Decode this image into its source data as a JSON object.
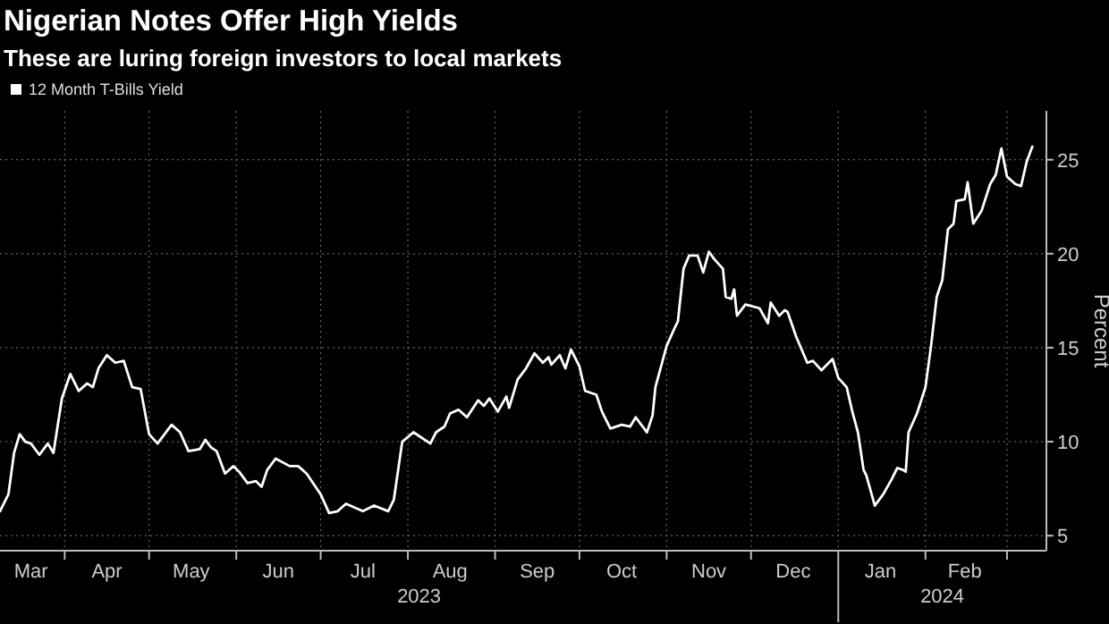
{
  "chart_data": {
    "type": "line",
    "title": "Nigerian Notes Offer High Yields",
    "subtitle": "These are luring foreign investors to local markets",
    "ylabel": "Percent",
    "x": [
      "2023-03-09",
      "2023-03-12",
      "2023-03-14",
      "2023-03-16",
      "2023-03-18",
      "2023-03-20",
      "2023-03-23",
      "2023-03-26",
      "2023-03-28",
      "2023-03-31",
      "2023-04-03",
      "2023-04-06",
      "2023-04-09",
      "2023-04-11",
      "2023-04-13",
      "2023-04-16",
      "2023-04-19",
      "2023-04-22",
      "2023-04-25",
      "2023-04-28",
      "2023-05-01",
      "2023-05-04",
      "2023-05-09",
      "2023-05-12",
      "2023-05-15",
      "2023-05-19",
      "2023-05-21",
      "2023-05-23",
      "2023-05-25",
      "2023-05-28",
      "2023-05-31",
      "2023-06-02",
      "2023-06-05",
      "2023-06-08",
      "2023-06-10",
      "2023-06-12",
      "2023-06-15",
      "2023-06-20",
      "2023-06-23",
      "2023-06-26",
      "2023-07-01",
      "2023-07-04",
      "2023-07-07",
      "2023-07-10",
      "2023-07-16",
      "2023-07-20",
      "2023-07-25",
      "2023-07-27",
      "2023-07-30",
      "2023-08-03",
      "2023-08-05",
      "2023-08-09",
      "2023-08-11",
      "2023-08-14",
      "2023-08-16",
      "2023-08-19",
      "2023-08-22",
      "2023-08-26",
      "2023-08-28",
      "2023-08-30",
      "2023-09-02",
      "2023-09-05",
      "2023-09-06",
      "2023-09-09",
      "2023-09-12",
      "2023-09-15",
      "2023-09-18",
      "2023-09-20",
      "2023-09-21",
      "2023-09-24",
      "2023-09-26",
      "2023-09-28",
      "2023-10-01",
      "2023-10-03",
      "2023-10-07",
      "2023-10-09",
      "2023-10-12",
      "2023-10-16",
      "2023-10-19",
      "2023-10-21",
      "2023-10-25",
      "2023-10-27",
      "2023-10-28",
      "2023-11-01",
      "2023-11-04",
      "2023-11-05",
      "2023-11-07",
      "2023-11-09",
      "2023-11-12",
      "2023-11-14",
      "2023-11-16",
      "2023-11-18",
      "2023-11-21",
      "2023-11-22",
      "2023-11-24",
      "2023-11-25",
      "2023-11-26",
      "2023-11-29",
      "2023-12-04",
      "2023-12-07",
      "2023-12-08",
      "2023-12-11",
      "2023-12-13",
      "2023-12-14",
      "2023-12-17",
      "2023-12-21",
      "2023-12-23",
      "2023-12-26",
      "2023-12-30",
      "2024-01-01",
      "2024-01-04",
      "2024-01-06",
      "2024-01-08",
      "2024-01-10",
      "2024-01-11",
      "2024-01-14",
      "2024-01-17",
      "2024-01-20",
      "2024-01-22",
      "2024-01-24",
      "2024-01-25",
      "2024-01-26",
      "2024-01-29",
      "2024-02-01",
      "2024-02-03",
      "2024-02-05",
      "2024-02-07",
      "2024-02-09",
      "2024-02-11",
      "2024-02-12",
      "2024-02-15",
      "2024-02-16",
      "2024-02-18",
      "2024-02-21",
      "2024-02-24",
      "2024-02-26",
      "2024-02-28",
      "2024-03-01",
      "2024-03-04",
      "2024-03-06",
      "2024-03-08",
      "2024-03-10"
    ],
    "series": [
      {
        "name": "12 Month T-Bills Yield",
        "color": "#ffffff",
        "values": [
          6.3,
          7.2,
          9.4,
          10.4,
          10.0,
          9.9,
          9.3,
          9.9,
          9.4,
          12.3,
          13.6,
          12.7,
          13.1,
          12.9,
          13.9,
          14.6,
          14.2,
          14.3,
          12.9,
          12.8,
          10.4,
          9.9,
          10.9,
          10.5,
          9.5,
          9.6,
          10.1,
          9.7,
          9.5,
          8.3,
          8.7,
          8.4,
          7.8,
          7.9,
          7.6,
          8.5,
          9.1,
          8.7,
          8.7,
          8.3,
          7.2,
          6.2,
          6.3,
          6.7,
          6.3,
          6.6,
          6.3,
          6.9,
          10.0,
          10.5,
          10.3,
          9.9,
          10.5,
          10.8,
          11.5,
          11.7,
          11.3,
          12.2,
          11.9,
          12.3,
          11.6,
          12.4,
          11.8,
          13.3,
          13.9,
          14.7,
          14.2,
          14.5,
          14.1,
          14.6,
          13.9,
          14.9,
          14.0,
          12.7,
          12.5,
          11.6,
          10.7,
          10.9,
          10.8,
          11.3,
          10.5,
          11.4,
          12.9,
          15.1,
          16.1,
          16.4,
          19.2,
          19.9,
          19.9,
          19.0,
          20.1,
          19.7,
          19.2,
          17.7,
          17.6,
          18.1,
          16.7,
          17.3,
          17.1,
          16.3,
          17.4,
          16.7,
          17.0,
          16.9,
          15.6,
          14.2,
          14.3,
          13.8,
          14.4,
          13.4,
          12.9,
          11.6,
          10.5,
          8.5,
          8.2,
          6.6,
          7.2,
          8.0,
          8.6,
          8.5,
          8.4,
          10.5,
          11.5,
          12.9,
          15.1,
          17.7,
          18.6,
          21.3,
          21.6,
          22.8,
          22.9,
          23.8,
          21.6,
          22.3,
          23.7,
          24.2,
          25.6,
          24.1,
          23.7,
          23.6,
          24.9,
          25.7
        ]
      }
    ],
    "xlim": [
      "2023-03-09",
      "2024-03-15"
    ],
    "xticks": [
      {
        "value": "2023-03-20",
        "label": "Mar"
      },
      {
        "value": "2023-04-01",
        "label": null
      },
      {
        "value": "2023-04-16",
        "label": "Apr"
      },
      {
        "value": "2023-05-01",
        "label": null
      },
      {
        "value": "2023-05-16",
        "label": "May"
      },
      {
        "value": "2023-06-01",
        "label": null
      },
      {
        "value": "2023-06-16",
        "label": "Jun"
      },
      {
        "value": "2023-07-01",
        "label": null
      },
      {
        "value": "2023-07-16",
        "label": "Jul"
      },
      {
        "value": "2023-08-01",
        "label": null
      },
      {
        "value": "2023-08-16",
        "label": "Aug"
      },
      {
        "value": "2023-09-01",
        "label": null
      },
      {
        "value": "2023-09-16",
        "label": "Sep"
      },
      {
        "value": "2023-10-01",
        "label": null
      },
      {
        "value": "2023-10-16",
        "label": "Oct"
      },
      {
        "value": "2023-11-01",
        "label": null
      },
      {
        "value": "2023-11-16",
        "label": "Nov"
      },
      {
        "value": "2023-12-01",
        "label": null
      },
      {
        "value": "2023-12-16",
        "label": "Dec"
      },
      {
        "value": "2024-01-01",
        "label": null
      },
      {
        "value": "2024-01-16",
        "label": "Jan"
      },
      {
        "value": "2024-02-01",
        "label": null
      },
      {
        "value": "2024-02-15",
        "label": "Feb"
      },
      {
        "value": "2024-03-01",
        "label": null
      }
    ],
    "ylim": [
      4.2,
      27.6
    ],
    "yticks": [
      5,
      10,
      15,
      20,
      25
    ],
    "annotations": [
      "2023",
      "2024"
    ],
    "grid": true,
    "legend": "top left",
    "marker": "none",
    "line_style": "solid"
  }
}
